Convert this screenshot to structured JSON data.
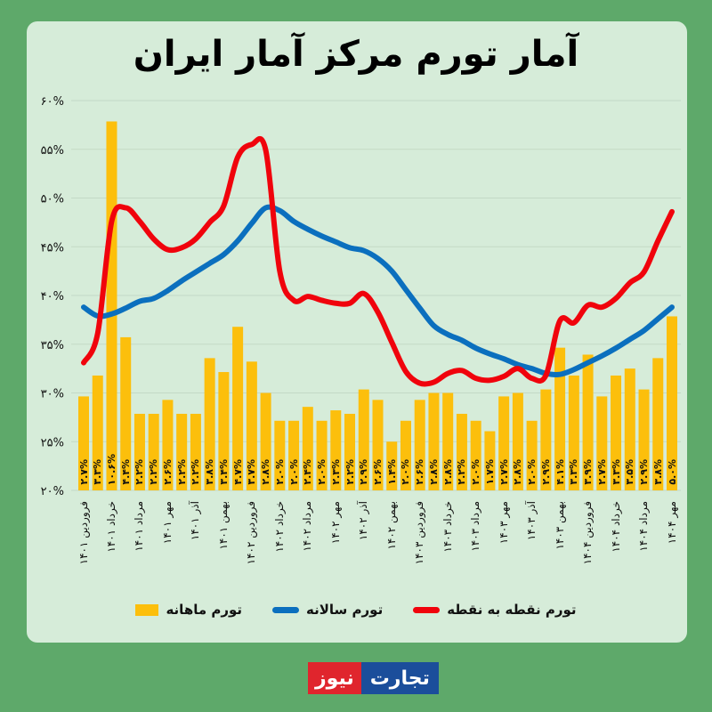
{
  "title": "آمار تورم مرکز آمار ایران",
  "colors": {
    "monthly": "#fcbf0c",
    "annual": "#0b6fbe",
    "point_to_point": "#f0030c",
    "panel": "#d6ecd9",
    "background": "#5ea96a"
  },
  "logo": {
    "part1": "تجارت",
    "part2": "نیوز"
  },
  "chart_data": {
    "type": "bar+line",
    "title": "آمار تورم مرکز آمار ایران",
    "ylim": [
      20,
      60
    ],
    "yticks": [
      "۲۰%",
      "۲۵%",
      "۳۰%",
      "۳۵%",
      "۴۰%",
      "۴۵%",
      "۵۰%",
      "۵۵%",
      "۶۰%"
    ],
    "ytick_values": [
      20,
      25,
      30,
      35,
      40,
      45,
      50,
      55,
      60
    ],
    "bar_ylim": [
      0,
      11.2
    ],
    "grid": true,
    "legend_position": "bottom",
    "x_tick_labels": [
      "فروردین ۱۴۰۱",
      "خرداد ۱۴۰۱",
      "مرداد ۱۴۰۱",
      "مهر ۱۴۰۱",
      "آذر ۱۴۰۱",
      "بهمن ۱۴۰۱",
      "فروردین ۱۴۰۲",
      "خرداد ۱۴۰۲",
      "مرداد ۱۴۰۲",
      "مهر ۱۴۰۲",
      "آذر ۱۴۰۲",
      "بهمن ۱۴۰۲",
      "فروردین ۱۴۰۳",
      "خرداد ۱۴۰۳",
      "مرداد ۱۴۰۳",
      "مهر ۱۴۰۳",
      "آذر ۱۴۰۳",
      "بهمن ۱۴۰۳",
      "فروردین ۱۴۰۴",
      "خرداد ۱۴۰۴",
      "مرداد ۱۴۰۴",
      "مهر ۱۴۰۴"
    ],
    "series": [
      {
        "name": "تورم ماهانه",
        "type": "bar",
        "values": [
          2.7,
          3.3,
          10.6,
          4.4,
          2.2,
          2.2,
          2.6,
          2.2,
          2.2,
          3.8,
          3.4,
          4.7,
          3.7,
          2.8,
          2.0,
          2.0,
          2.4,
          2.0,
          2.3,
          2.2,
          2.9,
          2.6,
          1.4,
          2.0,
          2.6,
          2.8,
          2.8,
          2.2,
          2.0,
          1.7,
          2.7,
          2.8,
          2.0,
          2.9,
          4.1,
          3.3,
          3.9,
          2.7,
          3.3,
          3.5,
          2.9,
          3.8,
          5.0
        ],
        "labels": [
          "۲.۷%",
          "۳.۳%",
          "۱۰.۶%",
          "۴.۴%",
          "۲.۲%",
          "۲.۲%",
          "۲.۶%",
          "۲.۲%",
          "۲.۲%",
          "۳.۸%",
          "۳.۴%",
          "۴.۷%",
          "۳.۷%",
          "۲.۸%",
          "۲.۰%",
          "۲.۰%",
          "۲.۴%",
          "۲.۰%",
          "۲.۳%",
          "۲.۲%",
          "۲.۹%",
          "۲.۶%",
          "۱.۴%",
          "۲.۰%",
          "۲.۶%",
          "۲.۸%",
          "۲.۸%",
          "۲.۲%",
          "۲.۰%",
          "۱.۷%",
          "۲.۷%",
          "۲.۸%",
          "۲.۰%",
          "۲.۹%",
          "۴.۱%",
          "۳.۳%",
          "۳.۹%",
          "۲.۷%",
          "۳.۳%",
          "۳.۵%",
          "۲.۹%",
          "۳.۸%",
          "۵.۰%"
        ]
      },
      {
        "name": "تورم سالانه",
        "type": "line",
        "values": [
          38.8,
          37.9,
          38.1,
          38.7,
          39.4,
          39.7,
          40.5,
          41.5,
          42.4,
          43.3,
          44.2,
          45.6,
          47.4,
          49.0,
          48.7,
          47.6,
          46.8,
          46.1,
          45.5,
          44.9,
          44.6,
          43.8,
          42.5,
          40.6,
          38.7,
          36.9,
          36.0,
          35.4,
          34.6,
          34.0,
          33.5,
          32.9,
          32.5,
          32.0,
          31.9,
          32.4,
          33.1,
          33.8,
          34.6,
          35.5,
          36.4,
          37.6,
          38.8
        ]
      },
      {
        "name": "تورم نقطه به نقطه",
        "type": "line",
        "values": [
          33.1,
          36.1,
          47.6,
          49.0,
          47.6,
          45.8,
          44.7,
          44.9,
          45.8,
          47.5,
          49.2,
          54.2,
          55.5,
          54.9,
          42.5,
          39.5,
          39.9,
          39.5,
          39.2,
          39.2,
          40.2,
          38.3,
          35.2,
          32.2,
          31.0,
          31.1,
          32.0,
          32.3,
          31.5,
          31.3,
          31.7,
          32.5,
          31.5,
          31.8,
          37.4,
          37.2,
          39.0,
          38.8,
          39.7,
          41.3,
          42.4,
          45.6,
          48.6
        ]
      }
    ]
  }
}
